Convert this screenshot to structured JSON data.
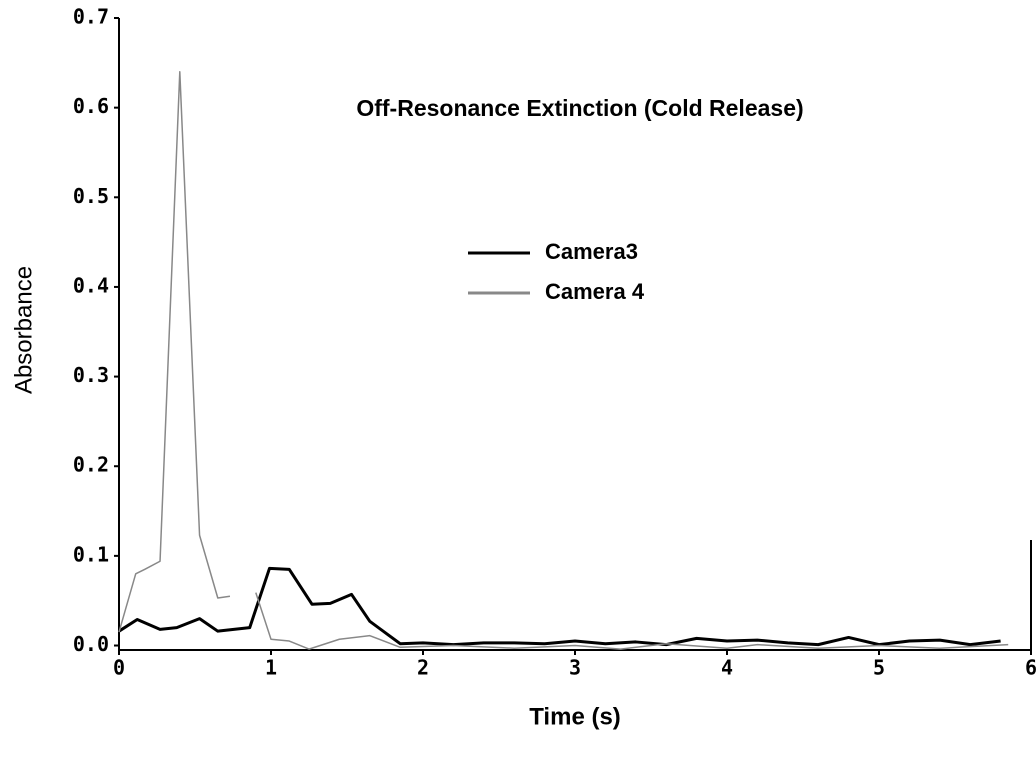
{
  "chart_data": {
    "type": "line",
    "annotation": "Off-Resonance Extinction (Cold Release)",
    "x_label": "Time (s)",
    "y_label": "Absorbance",
    "xlim": [
      0,
      6
    ],
    "xticks": [
      0,
      1,
      2,
      3,
      4,
      5,
      6
    ],
    "ylim": [
      -0.005,
      0.7
    ],
    "yticks": [
      {
        "value": 0,
        "label": "0.0"
      },
      {
        "value": 0.1,
        "label": "0.1"
      },
      {
        "value": 0.2,
        "label": "0.2"
      },
      {
        "value": 0.3,
        "label": "0.3"
      },
      {
        "value": 0.4,
        "label": "0.4"
      },
      {
        "value": 0.5,
        "label": "0.5"
      },
      {
        "value": 0.6,
        "label": "0.6"
      },
      {
        "value": 0.7,
        "label": "0.7"
      }
    ],
    "series": [
      {
        "name": "Camera3",
        "color": "#000000",
        "x": [
          0,
          0.12,
          0.27,
          0.38,
          0.53,
          0.65,
          0.86,
          0.99,
          1.12,
          1.27,
          1.39,
          1.53,
          1.65,
          1.85,
          2.0,
          2.2,
          2.4,
          2.6,
          2.8,
          3.0,
          3.2,
          3.4,
          3.6,
          3.8,
          4.0,
          4.2,
          4.4,
          4.6,
          4.8,
          5.0,
          5.2,
          5.4,
          5.6,
          5.8
        ],
        "values": [
          0.016,
          0.029,
          0.018,
          0.02,
          0.03,
          0.016,
          0.02,
          0.086,
          0.085,
          0.046,
          0.047,
          0.057,
          0.027,
          0.002,
          0.003,
          0.001,
          0.003,
          0.003,
          0.002,
          0.005,
          0.002,
          0.004,
          0.001,
          0.008,
          0.005,
          0.006,
          0.003,
          0.001,
          0.009,
          0.001,
          0.005,
          0.006,
          0.001,
          0.005
        ]
      },
      {
        "name": "Camera 4",
        "color": "#888888",
        "x": [
          0,
          0.11,
          0.17,
          0.27,
          0.4,
          0.53,
          0.65,
          0.73,
          0.8,
          0.9,
          1.0,
          1.12,
          1.25,
          1.45,
          1.65,
          1.85,
          2.2,
          2.6,
          3.0,
          3.3,
          3.6,
          4.0,
          4.2,
          4.6,
          5.0,
          5.4,
          5.85
        ],
        "values": [
          0.015,
          0.08,
          0.085,
          0.094,
          0.64,
          0.123,
          0.053,
          0.055,
          null,
          0.059,
          0.007,
          0.005,
          -0.004,
          0.007,
          0.011,
          -0.002,
          0.0,
          -0.003,
          0.0,
          -0.004,
          0.002,
          -0.003,
          0.001,
          -0.003,
          0.0,
          -0.003,
          0.001
        ]
      }
    ]
  }
}
